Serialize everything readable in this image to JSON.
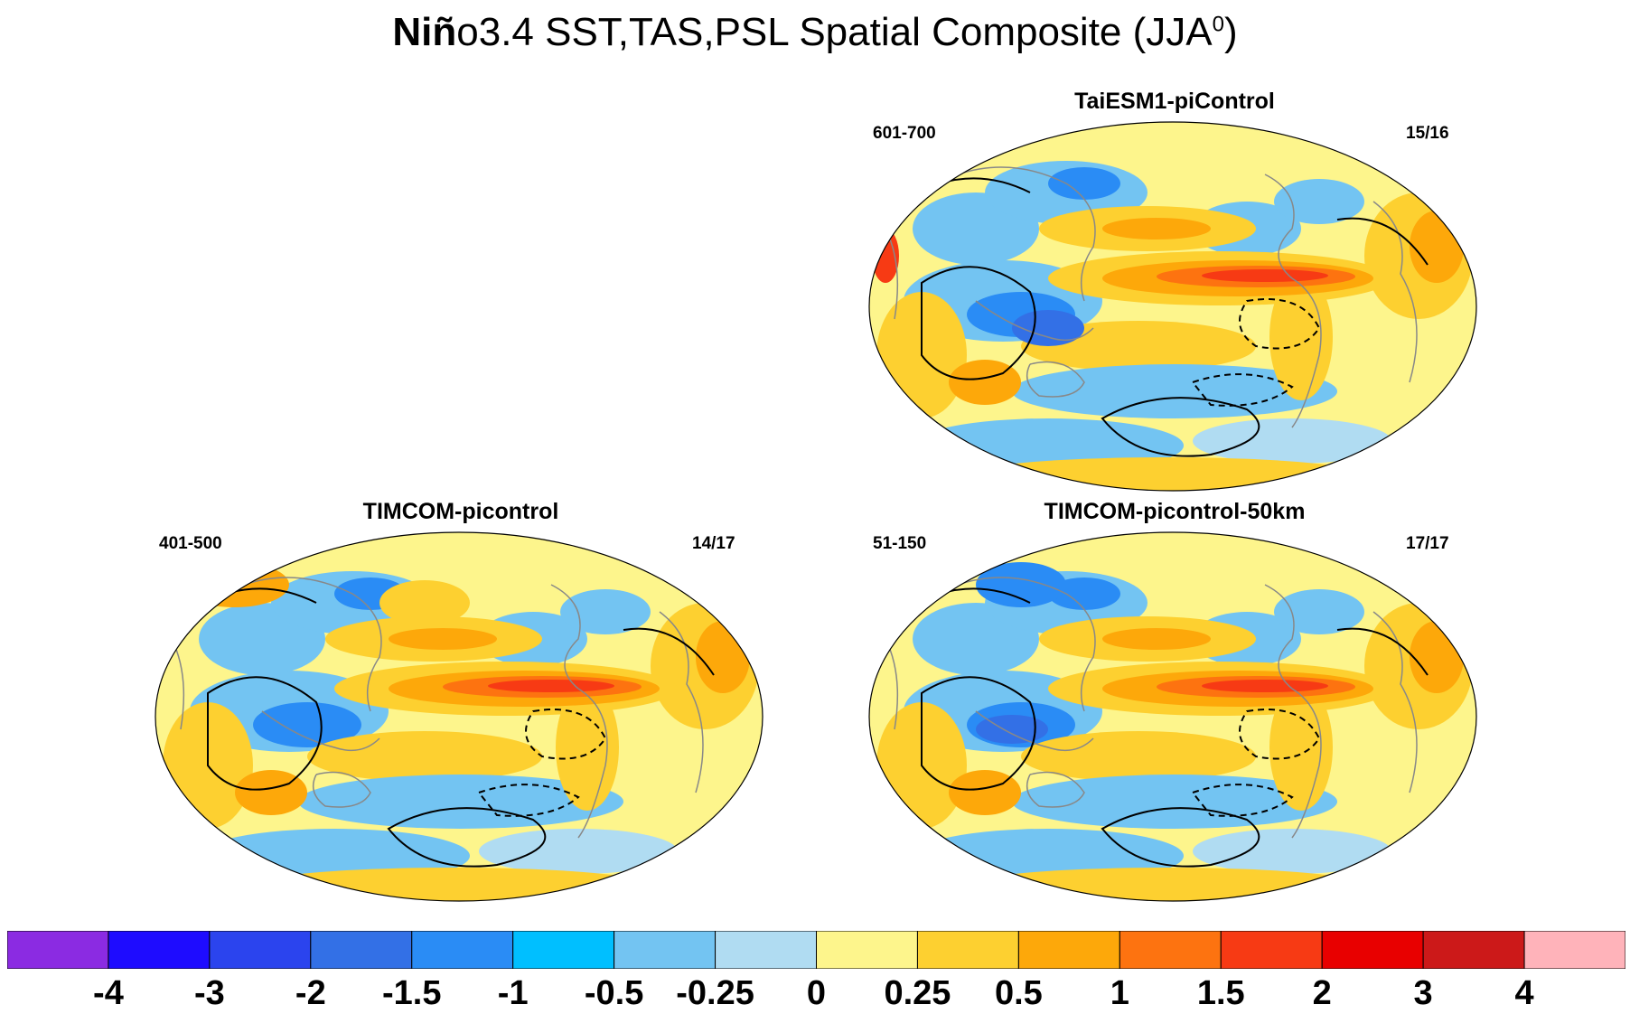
{
  "title": {
    "bold_part": "Niñ",
    "rest": "o3.4 SST,TAS,PSL Spatial Composite (JJA",
    "sup": "0",
    "close": ")"
  },
  "panels": [
    {
      "id": "taiesm1",
      "title": "TaiESM1-piControl",
      "years": "601-700",
      "count": "15/16"
    },
    {
      "id": "timcom",
      "title": "TIMCOM-picontrol",
      "years": "401-500",
      "count": "14/17"
    },
    {
      "id": "timcom50",
      "title": "TIMCOM-picontrol-50km",
      "years": "51-150",
      "count": "17/17"
    }
  ],
  "colorbar": {
    "colors": [
      "#8b2be2",
      "#1e0cff",
      "#2b44ee",
      "#3370e6",
      "#2a8cf5",
      "#00bfff",
      "#73c4f2",
      "#b0dcf2",
      "#fdf58c",
      "#fdd030",
      "#fda80a",
      "#fd7310",
      "#f73a14",
      "#e80000",
      "#cc1919",
      "#ffb3ba"
    ],
    "labels": [
      "-4",
      "-3",
      "-2",
      "-1.5",
      "-1",
      "-0.5",
      "-0.25",
      "0",
      "0.25",
      "0.5",
      "1",
      "1.5",
      "2",
      "3",
      "4"
    ]
  }
}
